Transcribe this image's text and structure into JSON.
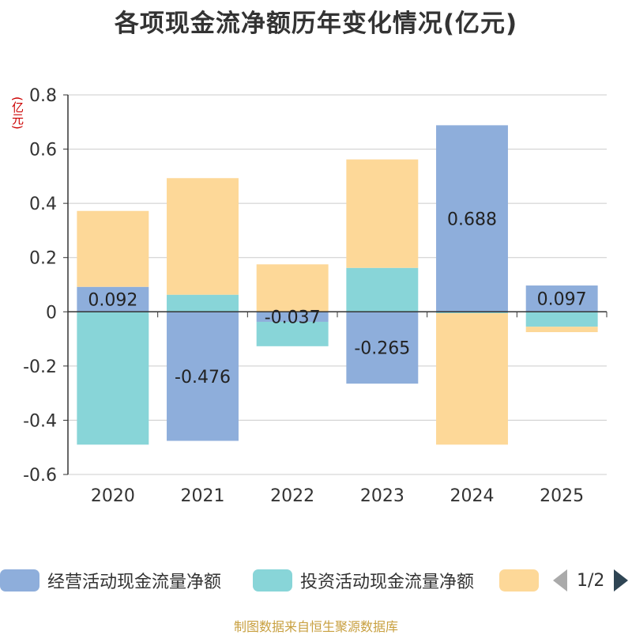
{
  "chart_data": {
    "type": "bar",
    "stacked": true,
    "title": "各项现金流净额历年变化情况(亿元)",
    "ylabel": "(亿元)",
    "categories": [
      "2020",
      "2021",
      "2022",
      "2023",
      "2024",
      "2025"
    ],
    "ylim": [
      -0.6,
      0.8
    ],
    "yticks": [
      -0.6,
      -0.4,
      -0.2,
      0,
      0.2,
      0.4,
      0.6,
      0.8
    ],
    "ytick_labels": [
      "-0.6",
      "-0.4",
      "-0.2",
      "0",
      "0.2",
      "0.4",
      "0.6",
      "0.8"
    ],
    "series": [
      {
        "name": "经营活动现金流量净额",
        "color": "#8eaedb",
        "values": [
          0.092,
          -0.476,
          -0.037,
          -0.265,
          0.688,
          0.097
        ],
        "labels": [
          "0.092",
          "-0.476",
          "-0.037",
          "-0.265",
          "0.688",
          "0.097"
        ]
      },
      {
        "name": "投资活动现金流量净额",
        "color": "#88d5d8",
        "values": [
          -0.49,
          0.063,
          -0.09,
          0.162,
          -0.005,
          -0.055
        ]
      },
      {
        "name": "",
        "color": "#fdd898",
        "values": [
          0.28,
          0.43,
          0.175,
          0.4,
          -0.485,
          -0.02
        ]
      }
    ],
    "legend": {
      "position": "bottom",
      "page": "1/2"
    }
  },
  "footer": "制图数据来自恒生聚源数据库"
}
